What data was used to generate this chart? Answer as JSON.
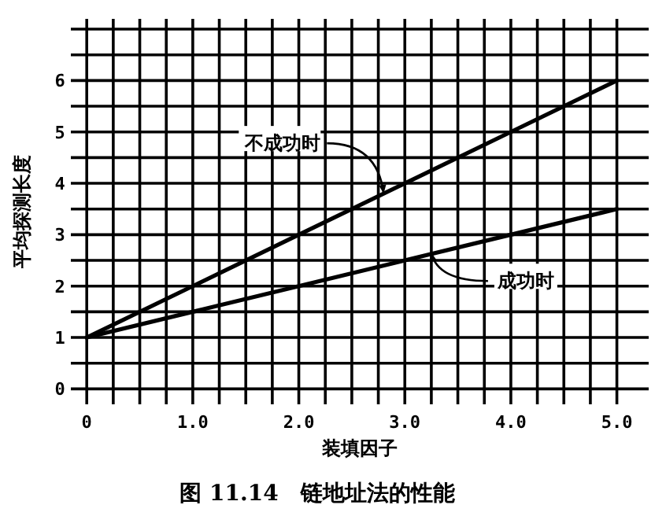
{
  "chart_data": {
    "type": "line",
    "title": "图 11.14　链地址法的性能",
    "xlabel": "装填因子",
    "ylabel": "平均探测长度",
    "x": [
      0,
      1,
      2,
      3,
      4,
      5
    ],
    "series": [
      {
        "color": "#000000",
        "values": [
          1,
          2,
          3,
          4,
          5,
          6
        ]
      },
      {
        "color": "#000000",
        "values": [
          1,
          1.5,
          2,
          2.5,
          3,
          3.5
        ]
      }
    ],
    "annotations": [
      {
        "text": "不成功时",
        "x": 2.8,
        "y": 3.8
      },
      {
        "text": "成功时",
        "x": 3.25,
        "y": 2.65
      }
    ],
    "xlim": [
      -0.15,
      5.3
    ],
    "ylim": [
      -0.3,
      7.2
    ],
    "xticks": [
      {
        "value": 0,
        "label": "0"
      },
      {
        "value": 0.25,
        "label": null
      },
      {
        "value": 0.5,
        "label": null
      },
      {
        "value": 0.75,
        "label": null
      },
      {
        "value": 1,
        "label": "1.0"
      },
      {
        "value": 1.25,
        "label": null
      },
      {
        "value": 1.5,
        "label": null
      },
      {
        "value": 1.75,
        "label": null
      },
      {
        "value": 2,
        "label": "2.0"
      },
      {
        "value": 2.25,
        "label": null
      },
      {
        "value": 2.5,
        "label": null
      },
      {
        "value": 2.75,
        "label": null
      },
      {
        "value": 3,
        "label": "3.0"
      },
      {
        "value": 3.25,
        "label": null
      },
      {
        "value": 3.5,
        "label": null
      },
      {
        "value": 3.75,
        "label": null
      },
      {
        "value": 4,
        "label": "4.0"
      },
      {
        "value": 4.25,
        "label": null
      },
      {
        "value": 4.5,
        "label": null
      },
      {
        "value": 4.75,
        "label": null
      },
      {
        "value": 5,
        "label": "5.0"
      }
    ],
    "yticks": [
      0,
      {
        "value": 0.5,
        "label": null
      },
      1,
      {
        "value": 1.5,
        "label": null
      },
      2,
      {
        "value": 2.5,
        "label": null
      },
      3,
      {
        "value": 3.5,
        "label": null
      },
      4,
      {
        "value": 4.5,
        "label": null
      },
      5,
      {
        "value": 5.5,
        "label": null
      },
      6,
      {
        "value": 6.5,
        "label": null
      },
      {
        "value": 7,
        "label": null
      }
    ],
    "grid": true,
    "marker": "none",
    "line_style": "solid"
  }
}
